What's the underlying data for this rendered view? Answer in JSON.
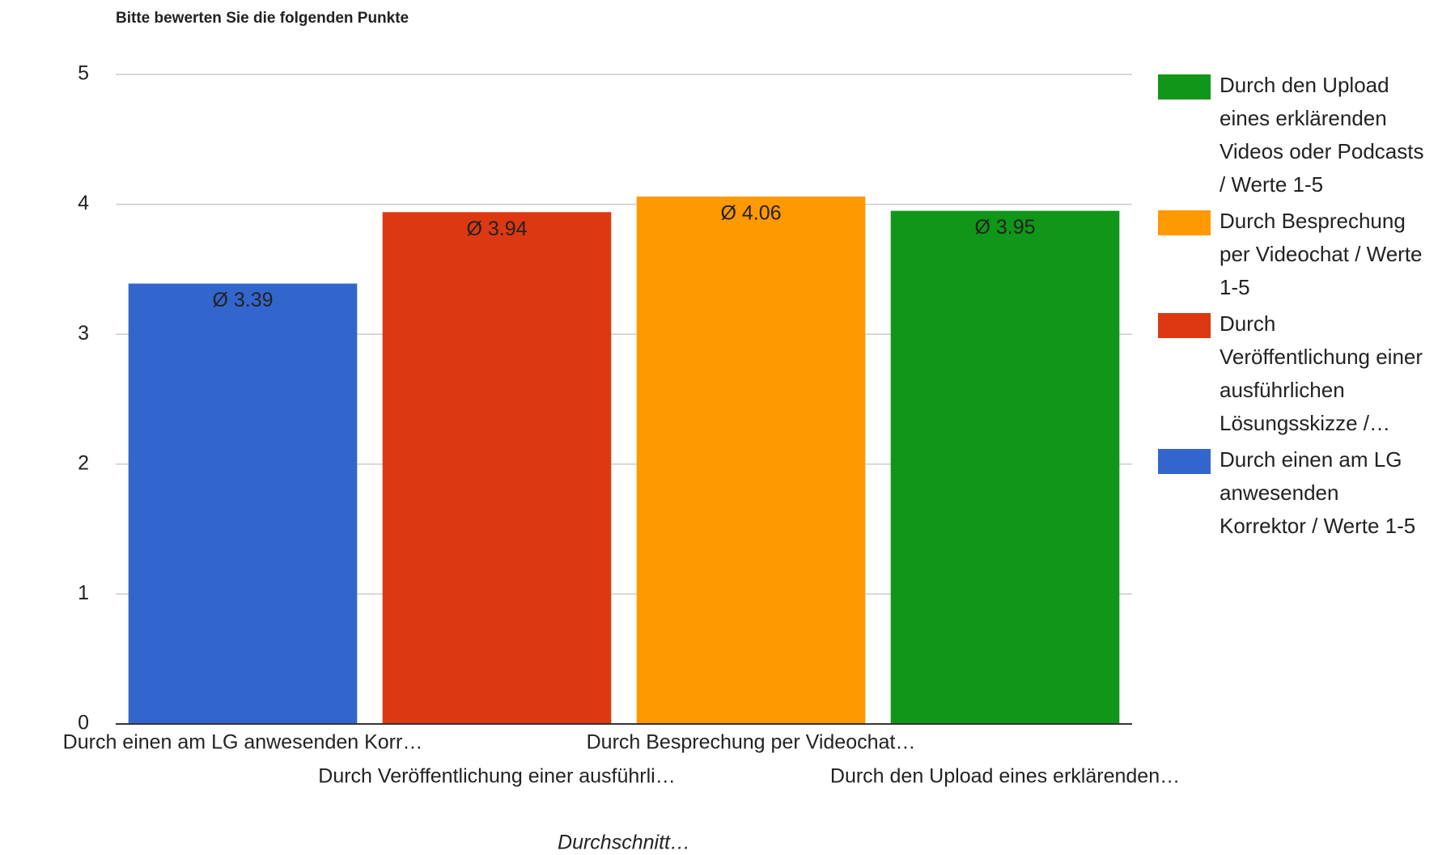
{
  "chart_data": {
    "type": "bar",
    "stacked": true,
    "title": "Bitte bewerten Sie die folgenden Punkte",
    "x_label": "Durchschnitt…",
    "categories": [
      "Durch einen am LG anwesenden Korr…",
      "Durch Veröffentlichung einer ausführli…",
      "Durch Besprechung per Videochat…",
      "Durch den Upload eines erklärenden…"
    ],
    "series": [
      {
        "name": "Durch einen am LG anwesenden Korrektor / Werte 1-5",
        "color": "#3366cc",
        "label_color": "#ffffff",
        "values": [
          3.39,
          null,
          null,
          null
        ],
        "value_labels": [
          "Ø 3.39",
          null,
          null,
          null
        ]
      },
      {
        "name": "Durch Veröffentlichung einer ausführlichen Lösungsskizze /…",
        "color": "#dc3912",
        "label_color": "#ffffff",
        "values": [
          null,
          3.94,
          null,
          null
        ],
        "value_labels": [
          null,
          "Ø 3.94",
          null,
          null
        ]
      },
      {
        "name": "Durch Besprechung per Videochat / Werte 1-5",
        "color": "#ff9900",
        "label_color": "#444444",
        "values": [
          null,
          null,
          4.06,
          null
        ],
        "value_labels": [
          null,
          null,
          "Ø 4.06",
          null
        ]
      },
      {
        "name": "Durch den Upload eines erklärenden Videos oder Podcasts / Werte 1-5",
        "color": "#109618",
        "label_color": "#ffffff",
        "values": [
          null,
          null,
          null,
          3.95
        ],
        "value_labels": [
          null,
          null,
          null,
          "Ø 3.95"
        ]
      }
    ],
    "ylim": [
      0,
      5
    ],
    "yticks": [
      0,
      1,
      2,
      3,
      4,
      5
    ],
    "grid": true,
    "legend": "right"
  }
}
